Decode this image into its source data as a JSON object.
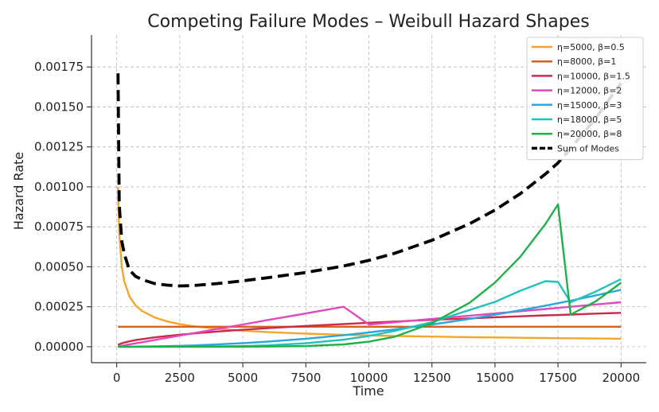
{
  "chart_data": {
    "type": "line",
    "title": "Competing Failure Modes – Weibull Hazard Shapes",
    "xlabel": "Time",
    "ylabel": "Hazard Rate",
    "xlim": [
      -1000,
      21000
    ],
    "ylim": [
      -0.0001,
      0.00195
    ],
    "xticks": [
      0,
      2500,
      5000,
      7500,
      10000,
      12500,
      15000,
      17500,
      20000
    ],
    "xtick_labels": [
      "0",
      "2500",
      "5000",
      "7500",
      "10000",
      "12500",
      "15000",
      "17500",
      "20000"
    ],
    "yticks": [
      0,
      0.00025,
      0.0005,
      0.00075,
      0.001,
      0.00125,
      0.0015,
      0.00175
    ],
    "ytick_labels": [
      "0.00000",
      "0.00025",
      "0.00050",
      "0.00075",
      "0.00100",
      "0.00125",
      "0.00150",
      "0.00175"
    ],
    "grid": true,
    "legend_position": "top-right",
    "x": [
      50,
      100,
      200,
      300,
      500,
      750,
      1000,
      1500,
      2000,
      2500,
      3000,
      4000,
      5000,
      6000,
      7500,
      9000,
      10000,
      11000,
      12500,
      14000,
      15000,
      16000,
      17000,
      17500,
      18000,
      19000,
      20000
    ],
    "series": [
      {
        "name": "η=5000, β=0.5",
        "color": "#f4a52a",
        "dashed": false,
        "values": [
          0.001,
          0.000707,
          0.0005,
          0.000408,
          0.000316,
          0.000258,
          0.000224,
          0.000183,
          0.000158,
          0.000141,
          0.000129,
          0.000112,
          0.0001,
          9.13e-05,
          8.16e-05,
          7.45e-05,
          7.07e-05,
          6.74e-05,
          6.32e-05,
          5.98e-05,
          5.77e-05,
          5.59e-05,
          5.42e-05,
          5.35e-05,
          5.27e-05,
          5.13e-05,
          5e-05
        ]
      },
      {
        "name": "η=8000, β=1",
        "color": "#d95f1e",
        "dashed": false,
        "values": [
          0.000125,
          0.000125,
          0.000125,
          0.000125,
          0.000125,
          0.000125,
          0.000125,
          0.000125,
          0.000125,
          0.000125,
          0.000125,
          0.000125,
          0.000125,
          0.000125,
          0.000125,
          0.000125,
          0.000125,
          0.000125,
          0.000125,
          0.000125,
          0.000125,
          0.000125,
          0.000125,
          0.000125,
          0.000125,
          0.000125,
          0.000125
        ]
      },
      {
        "name": "η=10000, β=1.5",
        "color": "#cc2a4a",
        "dashed": false,
        "values": [
          1.06e-05,
          1.5e-05,
          2.12e-05,
          2.6e-05,
          3.35e-05,
          4.11e-05,
          4.74e-05,
          5.81e-05,
          6.71e-05,
          7.5e-05,
          8.22e-05,
          9.49e-05,
          0.000106,
          0.000116,
          0.00013,
          0.000142,
          0.00015,
          0.000157,
          0.000168,
          0.000177,
          0.000184,
          0.00019,
          0.000196,
          0.000198,
          0.000201,
          0.000207,
          0.000212
        ]
      },
      {
        "name": "η=12000, β=2",
        "color": "#e04aba",
        "dashed": false,
        "values": [
          1.4e-06,
          2.8e-06,
          5.6e-06,
          8.3e-06,
          1.39e-05,
          2.08e-05,
          2.78e-05,
          4.17e-05,
          5.56e-05,
          6.94e-05,
          8.33e-05,
          0.000111,
          0.000139,
          0.000167,
          0.000208,
          0.00025,
          0.000139,
          0.000153,
          0.000174,
          0.000194,
          0.000208,
          0.000222,
          0.000236,
          0.000243,
          0.00025,
          0.000264,
          0.000278
        ]
      },
      {
        "name": "η=15000, β=3",
        "color": "#2aa7dc",
        "dashed": false,
        "values": [
          0.0,
          0.0,
          0.0,
          1e-07,
          2e-07,
          5e-07,
          9e-07,
          2e-06,
          3.6e-06,
          5.6e-06,
          8e-06,
          1.42e-05,
          2.22e-05,
          3.2e-05,
          5e-05,
          7.2e-05,
          8.89e-05,
          0.000108,
          0.000139,
          0.000174,
          0.0002,
          0.000228,
          0.000257,
          0.000272,
          0.000288,
          0.000321,
          0.000356
        ]
      },
      {
        "name": "η=18000, β=5",
        "color": "#22c2b8",
        "dashed": false,
        "values": [
          0.0,
          0.0,
          0.0,
          0.0,
          0.0,
          0.0,
          0.0,
          0.0,
          1e-07,
          3e-07,
          5e-07,
          1.7e-06,
          4.2e-06,
          8.7e-06,
          2.12e-05,
          4.4e-05,
          6.7e-05,
          9.8e-05,
          0.000154,
          0.00023,
          0.00028,
          0.00035,
          0.00041,
          0.000405,
          0.000278,
          0.000345,
          0.000423
        ]
      },
      {
        "name": "η=20000, β=8",
        "color": "#1fb04a",
        "dashed": false,
        "values": [
          0.0,
          0.0,
          0.0,
          0.0,
          0.0,
          0.0,
          0.0,
          0.0,
          0.0,
          0.0,
          0.0,
          0.0,
          2e-07,
          9e-07,
          4.1e-06,
          1.45e-05,
          3.13e-05,
          6.12e-05,
          0.000147,
          0.000275,
          0.000401,
          0.000562,
          0.000768,
          0.00089,
          0.000201,
          0.000284,
          0.0004
        ]
      },
      {
        "name": "Sum of Modes",
        "color": "#000000",
        "dashed": true,
        "values": [
          0.00171,
          0.00089,
          0.00066,
          0.00058,
          0.00048,
          0.00044,
          0.00042,
          0.000395,
          0.000385,
          0.00038,
          0.000382,
          0.000395,
          0.000412,
          0.000432,
          0.000464,
          0.000505,
          0.00054,
          0.000583,
          0.000666,
          0.00077,
          0.000855,
          0.000957,
          0.00108,
          0.00115,
          0.00124,
          0.00143,
          0.00165
        ]
      }
    ]
  }
}
